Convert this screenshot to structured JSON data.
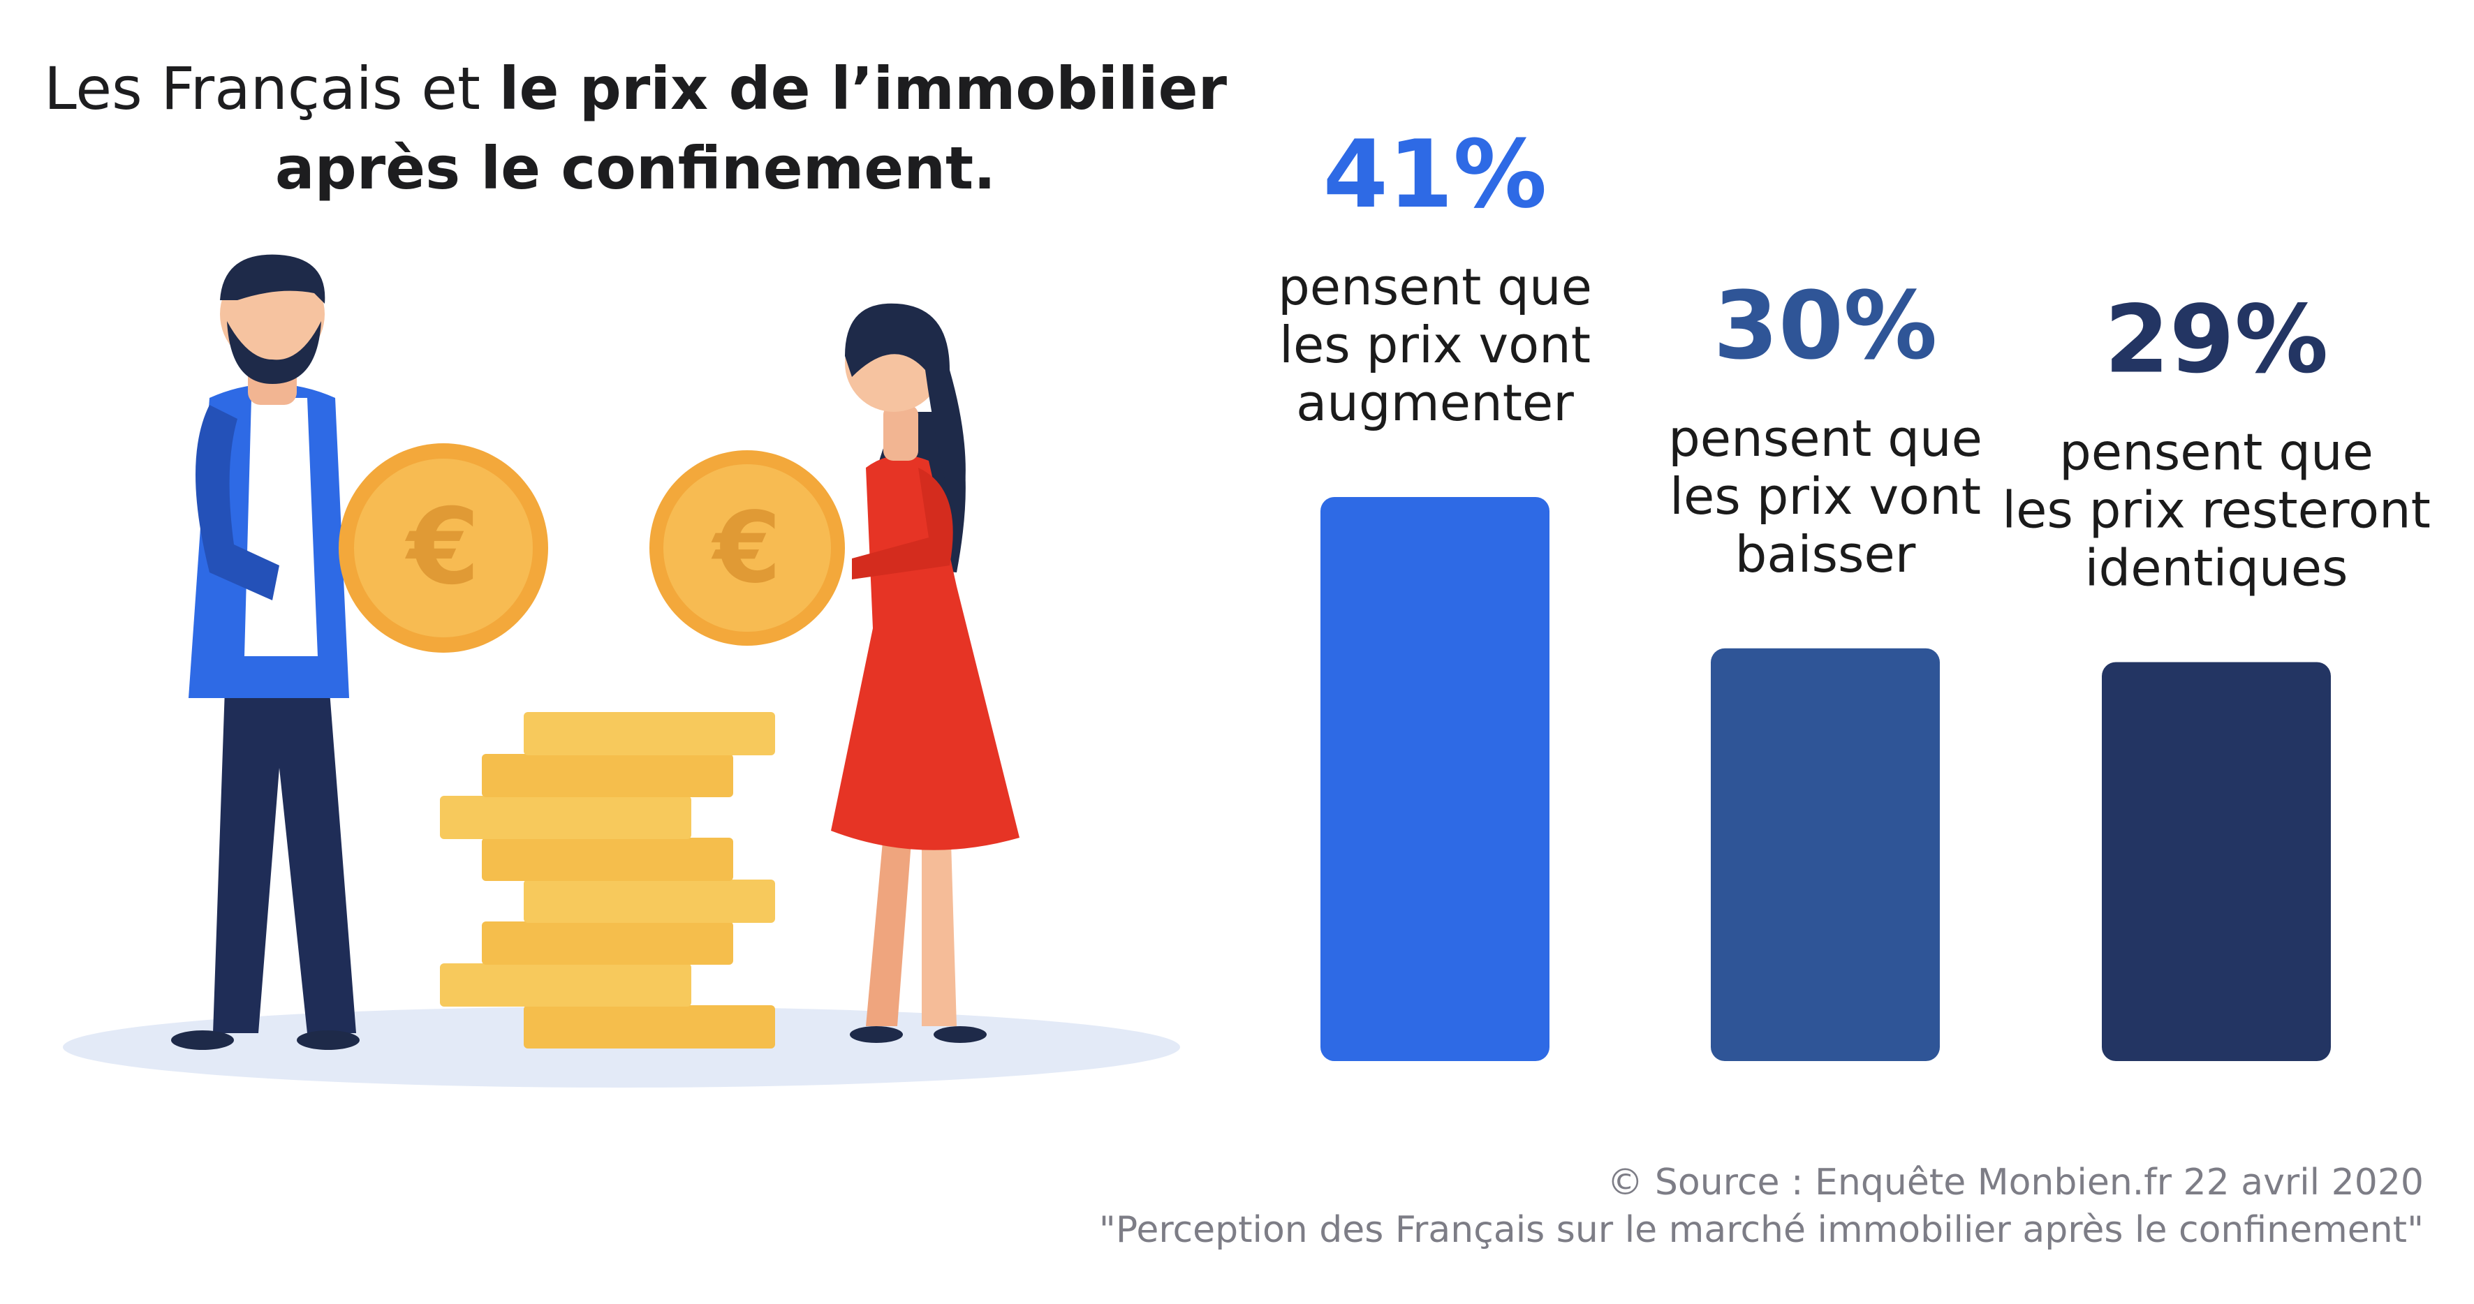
{
  "title": {
    "line1_light": "Les Français et ",
    "line1_bold": "le prix de l’immobilier",
    "line2_bold": "après le confinement."
  },
  "colors": {
    "bar1": "#2E6AE5",
    "bar2": "#2F5597",
    "bar3": "#233563",
    "pct1": "#2E6AE5",
    "pct2": "#2F5597",
    "pct3": "#233563"
  },
  "illustration": {
    "coin_symbol": "€"
  },
  "chart_data": {
    "type": "bar",
    "categories": [
      "augmenter",
      "baisser",
      "identiques"
    ],
    "values": [
      41,
      30,
      29
    ],
    "unit": "%",
    "value_labels": [
      "41%",
      "30%",
      "29%"
    ],
    "bar_descriptions": [
      [
        "pensent que",
        "les prix vont",
        "augmenter"
      ],
      [
        "pensent que",
        "les prix vont",
        "baisser"
      ],
      [
        "pensent que",
        "les prix resteront",
        "identiques"
      ]
    ],
    "ylim": [
      0,
      41
    ],
    "grid": false,
    "legend": "none"
  },
  "source": {
    "line1": "© Source : Enquête Monbien.fr 22 avril 2020",
    "line2": "\"Perception des Français sur le marché immobilier après le confinement\""
  }
}
